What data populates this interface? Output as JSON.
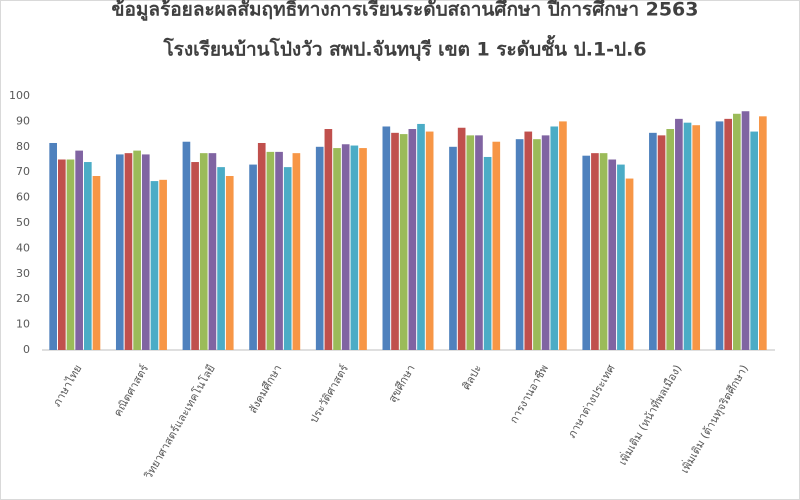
{
  "chart_data": {
    "type": "bar",
    "title": "ข้อมูลร้อยละผลสัมฤทธิ์ทางการเรียนระดับสถานศึกษา ปีการศึกษา 2563",
    "subtitle": "โรงเรียนบ้านโป่งวัว สพป.จันทบุรี เขต 1 ระดับชั้น ป.1-ป.6",
    "categories": [
      "ภาษาไทย",
      "คณิตศาสตร์",
      "วิทยาศาสตร์และเทคโนโลยี",
      "สังคมศึกษา",
      "ประวัติศาสตร์",
      "สุขศึกษา",
      "ศิลปะ",
      "การงานอาชีพ",
      "ภาษาต่างประเทศ",
      "เพิ่มเติม (หน้าที่พลเมือง)",
      "เพิ่มเติม (ต้านทุจริตศึกษา)"
    ],
    "series": [
      {
        "color": "#4f81bd",
        "values": [
          81.5,
          77,
          82,
          73,
          80,
          88,
          80,
          83,
          76.5,
          85.5,
          90
        ]
      },
      {
        "color": "#c0504d",
        "values": [
          75,
          77.5,
          74,
          81.5,
          87,
          85.5,
          87.5,
          86,
          77.5,
          84.5,
          91
        ]
      },
      {
        "color": "#9bbb59",
        "values": [
          75,
          78.5,
          77.5,
          78,
          79.5,
          85,
          84.5,
          83,
          77.5,
          87,
          93
        ]
      },
      {
        "color": "#8064a2",
        "values": [
          78.5,
          77,
          77.5,
          78,
          81,
          87,
          84.5,
          84.5,
          75,
          91,
          94
        ]
      },
      {
        "color": "#4bacc6",
        "values": [
          74,
          66.5,
          72,
          72,
          80.5,
          89,
          76,
          88,
          73,
          89.5,
          86
        ]
      },
      {
        "color": "#f79646",
        "values": [
          68.5,
          67,
          68.5,
          77.5,
          79.5,
          86,
          82,
          90,
          67.5,
          88.5,
          92
        ]
      }
    ],
    "ylim": [
      0,
      100
    ],
    "yticks": [
      0,
      10,
      20,
      30,
      40,
      50,
      60,
      70,
      80,
      90,
      100
    ],
    "grid": false
  }
}
